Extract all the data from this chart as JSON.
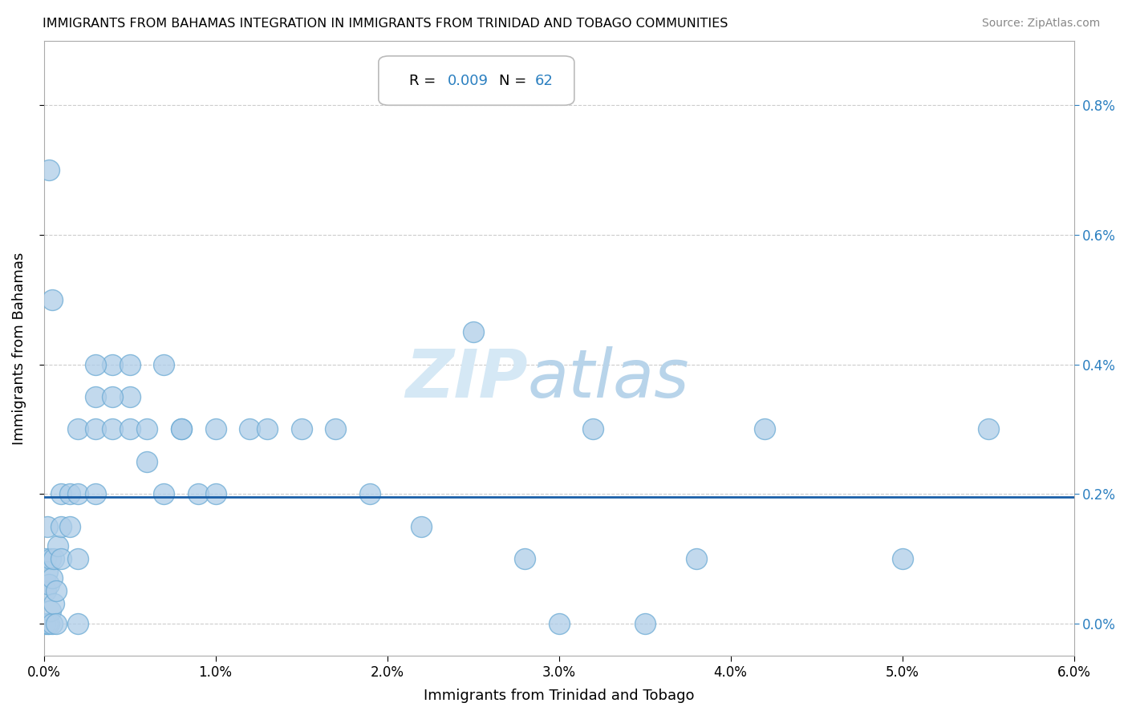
{
  "title": "IMMIGRANTS FROM BAHAMAS INTEGRATION IN IMMIGRANTS FROM TRINIDAD AND TOBAGO COMMUNITIES",
  "source": "Source: ZipAtlas.com",
  "xlabel": "Immigrants from Trinidad and Tobago",
  "ylabel": "Immigrants from Bahamas",
  "xlim": [
    0.0,
    0.06
  ],
  "ylim": [
    -0.0005,
    0.009
  ],
  "xticks": [
    0.0,
    0.01,
    0.02,
    0.03,
    0.04,
    0.05,
    0.06
  ],
  "xtick_labels": [
    "0.0%",
    "1.0%",
    "2.0%",
    "3.0%",
    "4.0%",
    "5.0%",
    "6.0%"
  ],
  "ytick_labels": [
    "0.0%",
    "0.2%",
    "0.4%",
    "0.6%",
    "0.8%"
  ],
  "yticks": [
    0.0,
    0.002,
    0.004,
    0.006,
    0.008
  ],
  "R_val": "0.009",
  "N_val": "62",
  "dot_color": "#aecde8",
  "dot_edge_color": "#6aaad4",
  "line_color": "#1a5fa8",
  "watermark_color": "#d0e4f5",
  "regression_y": 0.00195,
  "scatter_x": [
    5e-05,
    0.0001,
    0.0001,
    0.0002,
    0.0002,
    0.0002,
    0.0003,
    0.0003,
    0.0004,
    0.0004,
    0.0005,
    0.0005,
    0.0006,
    0.0006,
    0.0007,
    0.0007,
    0.0008,
    0.001,
    0.001,
    0.001,
    0.0015,
    0.0015,
    0.002,
    0.002,
    0.002,
    0.002,
    0.003,
    0.003,
    0.003,
    0.004,
    0.004,
    0.005,
    0.005,
    0.006,
    0.007,
    0.008,
    0.009,
    0.01,
    0.01,
    0.012,
    0.013,
    0.015,
    0.017,
    0.019,
    0.022,
    0.025,
    0.028,
    0.03,
    0.032,
    0.035,
    0.038,
    0.042,
    0.05,
    0.055,
    0.003,
    0.004,
    0.005,
    0.006,
    0.007,
    0.008,
    0.0003,
    0.0005
  ],
  "scatter_y": [
    0.0,
    0.0005,
    0.001,
    0.0,
    0.0008,
    0.0015,
    0.0,
    0.0006,
    0.0002,
    0.001,
    0.0,
    0.0007,
    0.0003,
    0.001,
    0.0,
    0.0005,
    0.0012,
    0.001,
    0.0015,
    0.002,
    0.0015,
    0.002,
    0.0,
    0.001,
    0.002,
    0.003,
    0.002,
    0.003,
    0.0035,
    0.003,
    0.004,
    0.003,
    0.0035,
    0.0025,
    0.002,
    0.003,
    0.002,
    0.002,
    0.003,
    0.003,
    0.003,
    0.003,
    0.003,
    0.002,
    0.0015,
    0.0045,
    0.001,
    0.0,
    0.003,
    0.0,
    0.001,
    0.003,
    0.001,
    0.003,
    0.004,
    0.0035,
    0.004,
    0.003,
    0.004,
    0.003,
    0.007,
    0.005
  ]
}
